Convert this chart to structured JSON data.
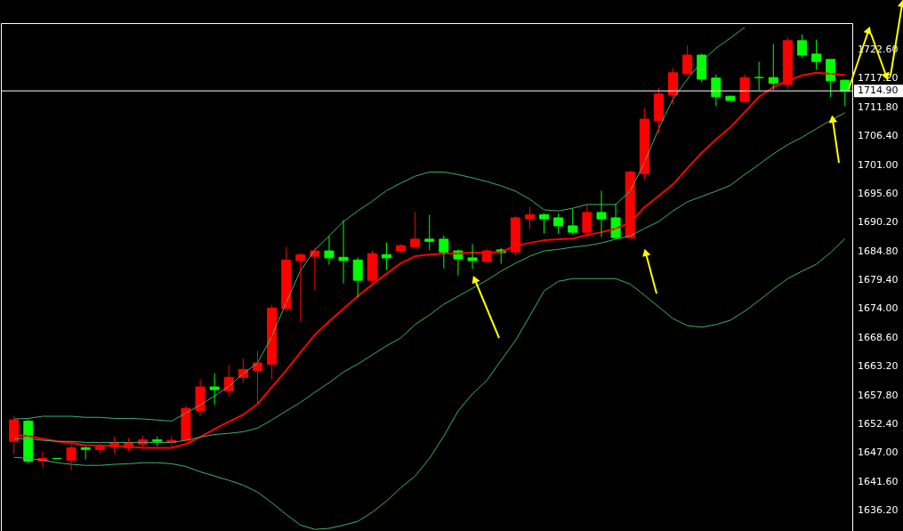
{
  "chart_data": {
    "type": "candlestick",
    "categories": [
      null,
      null,
      null,
      null,
      null,
      null,
      null,
      null,
      null,
      null,
      null,
      null,
      null,
      null,
      null,
      null,
      null,
      null,
      null,
      null,
      null,
      null,
      null,
      null,
      null,
      null,
      null,
      null,
      null,
      null,
      null,
      null,
      null,
      null,
      null,
      null,
      null,
      null,
      null,
      null,
      null,
      null,
      null,
      null,
      null,
      null,
      null,
      null,
      null,
      null,
      null,
      null,
      null,
      null,
      null,
      null,
      null,
      null,
      null
    ],
    "ohlc": [
      [
        1649.2,
        1653.9,
        1646.9,
        1653.2
      ],
      [
        1653.0,
        1653.2,
        1645.2,
        1645.5
      ],
      [
        1645.5,
        1647.2,
        1644.5,
        1646.0
      ],
      [
        1646.0,
        1646.0,
        1646.0,
        1646.0
      ],
      [
        1645.7,
        1649.0,
        1643.9,
        1648.0
      ],
      [
        1648.0,
        1648.2,
        1645.9,
        1647.7
      ],
      [
        1647.7,
        1649.0,
        1647.0,
        1648.2
      ],
      [
        1648.2,
        1650.0,
        1647.0,
        1648.9
      ],
      [
        1648.0,
        1649.7,
        1647.5,
        1648.9
      ],
      [
        1648.7,
        1650.2,
        1648.2,
        1649.5
      ],
      [
        1649.5,
        1650.0,
        1648.4,
        1649.2
      ],
      [
        1649.0,
        1650.2,
        1648.2,
        1649.4
      ],
      [
        1649.4,
        1655.7,
        1649.2,
        1655.4
      ],
      [
        1655.0,
        1660.7,
        1654.0,
        1659.4
      ],
      [
        1659.4,
        1661.9,
        1656.2,
        1658.9
      ],
      [
        1658.7,
        1663.4,
        1657.7,
        1661.2
      ],
      [
        1661.2,
        1664.6,
        1660.2,
        1662.7
      ],
      [
        1662.5,
        1666.1,
        1656.1,
        1663.9
      ],
      [
        1663.7,
        1674.7,
        1660.9,
        1674.2
      ],
      [
        1674.1,
        1685.6,
        1673.6,
        1683.2
      ],
      [
        1683.1,
        1684.4,
        1671.7,
        1684.2
      ],
      [
        1683.9,
        1685.4,
        1677.6,
        1684.9
      ],
      [
        1684.9,
        1687.6,
        1682.4,
        1683.6
      ],
      [
        1683.7,
        1690.6,
        1678.9,
        1683.1
      ],
      [
        1683.2,
        1683.6,
        1676.2,
        1679.4
      ],
      [
        1679.4,
        1684.9,
        1678.6,
        1684.4
      ],
      [
        1684.2,
        1686.4,
        1681.4,
        1683.6
      ],
      [
        1684.9,
        1686.1,
        1684.6,
        1685.9
      ],
      [
        1685.7,
        1692.1,
        1685.6,
        1687.1
      ],
      [
        1687.1,
        1691.6,
        1685.1,
        1686.7
      ],
      [
        1687.1,
        1687.7,
        1681.7,
        1684.7
      ],
      [
        1684.9,
        1685.1,
        1680.4,
        1683.4
      ],
      [
        1683.6,
        1686.1,
        1681.6,
        1683.1
      ],
      [
        1682.9,
        1685.2,
        1682.9,
        1684.9
      ],
      [
        1685.1,
        1685.4,
        1682.6,
        1684.6
      ],
      [
        1684.7,
        1691.4,
        1684.1,
        1691.1
      ],
      [
        1690.9,
        1693.1,
        1689.1,
        1691.7
      ],
      [
        1691.7,
        1691.9,
        1688.2,
        1690.9
      ],
      [
        1691.1,
        1691.9,
        1688.2,
        1689.6
      ],
      [
        1689.6,
        1692.7,
        1688.1,
        1688.4
      ],
      [
        1688.4,
        1693.6,
        1687.4,
        1692.1
      ],
      [
        1692.1,
        1696.1,
        1687.6,
        1690.9
      ],
      [
        1691.1,
        1693.6,
        1687.2,
        1687.4
      ],
      [
        1687.4,
        1699.9,
        1687.2,
        1699.7
      ],
      [
        1699.4,
        1711.6,
        1698.4,
        1709.6
      ],
      [
        1709.3,
        1715.4,
        1706.9,
        1714.3
      ],
      [
        1714.1,
        1719.1,
        1712.4,
        1718.3
      ],
      [
        1718.1,
        1723.3,
        1718.1,
        1721.6
      ],
      [
        1721.6,
        1721.8,
        1716.6,
        1717.1
      ],
      [
        1717.3,
        1717.9,
        1712.1,
        1713.8
      ],
      [
        1713.9,
        1713.9,
        1713.1,
        1713.1
      ],
      [
        1712.9,
        1717.9,
        1712.8,
        1717.4
      ],
      [
        1717.4,
        1720.3,
        1715.1,
        1717.4
      ],
      [
        1717.4,
        1723.6,
        1715.1,
        1716.3
      ],
      [
        1716.1,
        1724.9,
        1715.3,
        1724.3
      ],
      [
        1724.3,
        1725.4,
        1721.1,
        1721.6
      ],
      [
        1721.8,
        1724.4,
        1718.9,
        1720.4
      ],
      [
        1720.8,
        1720.8,
        1713.8,
        1716.8
      ],
      [
        1716.9,
        1716.9,
        1712.1,
        1714.9
      ]
    ],
    "colors": [
      "#ff0000",
      "#00ff00",
      "#ff0000",
      "#00ff00",
      "#ff0000",
      "#00ff00",
      "#ff0000",
      "#ff0000",
      "#ff0000",
      "#ff0000",
      "#00ff00",
      "#ff0000",
      "#ff0000",
      "#ff0000",
      "#00ff00",
      "#ff0000",
      "#ff0000",
      "#ff0000",
      "#ff0000",
      "#ff0000",
      "#ff0000",
      "#ff0000",
      "#00ff00",
      "#00ff00",
      "#00ff00",
      "#ff0000",
      "#00ff00",
      "#ff0000",
      "#ff0000",
      "#00ff00",
      "#00ff00",
      "#00ff00",
      "#00ff00",
      "#ff0000",
      "#00ff00",
      "#ff0000",
      "#ff0000",
      "#00ff00",
      "#00ff00",
      "#00ff00",
      "#ff0000",
      "#00ff00",
      "#00ff00",
      "#ff0000",
      "#ff0000",
      "#ff0000",
      "#ff0000",
      "#ff0000",
      "#00ff00",
      "#00ff00",
      "#00ff00",
      "#ff0000",
      "#00ff00",
      "#00ff00",
      "#ff0000",
      "#00ff00",
      "#00ff00",
      "#00ff00",
      "#00ff00"
    ],
    "series": [
      {
        "type": "line",
        "color": "#ff0000",
        "values": [
          1650.4,
          1650.2,
          1649.7,
          1649.2,
          1648.9,
          1648.5,
          1648.4,
          1648.4,
          1648.2,
          1648.0,
          1648.0,
          1648.0,
          1648.7,
          1650.0,
          1651.5,
          1652.9,
          1654.2,
          1656.2,
          1659.4,
          1662.5,
          1665.9,
          1669.2,
          1671.7,
          1674.1,
          1676.4,
          1678.6,
          1680.6,
          1682.6,
          1683.9,
          1684.2,
          1684.4,
          1684.4,
          1684.6,
          1684.6,
          1684.7,
          1685.9,
          1686.4,
          1686.9,
          1687.1,
          1687.2,
          1687.9,
          1688.4,
          1689.1,
          1690.2,
          1693.1,
          1695.2,
          1697.4,
          1700.4,
          1703.3,
          1705.8,
          1708.1,
          1710.9,
          1713.8,
          1715.6,
          1716.8,
          1717.8,
          1718.3,
          1718.1,
          1717.9
        ]
      },
      {
        "type": "line",
        "color": "#3cb371",
        "values": [
          1653.4,
          1653.5,
          1653.9,
          1653.9,
          1653.9,
          1653.7,
          1653.7,
          1653.5,
          1653.5,
          1653.4,
          1653.2,
          1653.0,
          1654.5,
          1656.0,
          1657.7,
          1659.5,
          1661.9,
          1663.9,
          1668.9,
          1675.2,
          1681.2,
          1685.1,
          1687.7,
          1690.4,
          1692.4,
          1694.2,
          1696.2,
          1697.6,
          1698.9,
          1699.7,
          1699.7,
          1699.2,
          1698.6,
          1697.9,
          1697.1,
          1696.1,
          1694.6,
          1692.6,
          1692.4,
          1692.9,
          1693.6,
          1693.6,
          1693.6,
          1696.1,
          1701.4,
          1707.8,
          1713.4,
          1717.1,
          1720.4,
          1722.9,
          1724.8,
          1726.8,
          null,
          null,
          null,
          null,
          null,
          null,
          null
        ]
      },
      {
        "type": "line",
        "color": "#3cb371",
        "values": [
          1649.7,
          1649.7,
          1649.4,
          1649.2,
          1649.2,
          1649.0,
          1649.0,
          1649.0,
          1649.0,
          1649.0,
          1649.0,
          1649.0,
          1649.4,
          1650.0,
          1650.5,
          1650.7,
          1651.0,
          1651.7,
          1653.2,
          1654.9,
          1656.5,
          1658.4,
          1660.2,
          1662.2,
          1663.7,
          1665.4,
          1667.1,
          1668.6,
          1671.1,
          1672.9,
          1674.9,
          1676.4,
          1677.9,
          1679.4,
          1681.1,
          1682.6,
          1683.9,
          1684.9,
          1685.2,
          1685.6,
          1685.9,
          1686.4,
          1687.1,
          1687.7,
          1689.1,
          1690.4,
          1692.4,
          1694.1,
          1695.1,
          1696.1,
          1697.2,
          1699.2,
          1701.1,
          1703.1,
          1704.8,
          1706.2,
          1707.8,
          1709.4,
          1710.8
        ]
      },
      {
        "type": "line",
        "color": "#3cb371",
        "values": [
          1646.2,
          1646.0,
          1645.7,
          1645.2,
          1644.9,
          1644.7,
          1644.7,
          1644.9,
          1645.0,
          1645.2,
          1645.2,
          1645.0,
          1644.5,
          1643.5,
          1642.7,
          1641.9,
          1641.0,
          1639.7,
          1637.7,
          1635.5,
          1633.5,
          1632.7,
          1632.9,
          1633.5,
          1634.2,
          1635.9,
          1638.0,
          1640.5,
          1642.7,
          1646.0,
          1650.2,
          1654.9,
          1658.1,
          1660.6,
          1664.4,
          1668.1,
          1672.7,
          1677.4,
          1679.2,
          1679.7,
          1679.7,
          1679.7,
          1679.7,
          1678.7,
          1676.6,
          1674.4,
          1672.2,
          1670.9,
          1670.6,
          1671.1,
          1671.9,
          1673.6,
          1675.6,
          1677.7,
          1679.7,
          1681.1,
          1682.4,
          1684.6,
          1687.2
        ]
      }
    ],
    "ylim": [
      1632.4,
      1727.6
    ],
    "yticks": [
      {
        "value": 1722.6,
        "label": "1722.60"
      },
      {
        "value": 1717.2,
        "label": "1717.20"
      },
      {
        "value": 1711.8,
        "label": "1711.80"
      },
      {
        "value": 1706.4,
        "label": "1706.40"
      },
      {
        "value": 1701.0,
        "label": "1701.00"
      },
      {
        "value": 1695.6,
        "label": "1695.60"
      },
      {
        "value": 1690.2,
        "label": "1690.20"
      },
      {
        "value": 1684.8,
        "label": "1684.80"
      },
      {
        "value": 1679.4,
        "label": "1679.40"
      },
      {
        "value": 1674.0,
        "label": "1674.00"
      },
      {
        "value": 1668.6,
        "label": "1668.60"
      },
      {
        "value": 1663.2,
        "label": "1663.20"
      },
      {
        "value": 1657.8,
        "label": "1657.80"
      },
      {
        "value": 1652.4,
        "label": "1652.40"
      },
      {
        "value": 1647.0,
        "label": "1647.00"
      },
      {
        "value": 1641.6,
        "label": "1641.60"
      },
      {
        "value": 1636.2,
        "label": "1636.20"
      }
    ],
    "ref_lines": [
      {
        "axis": "y",
        "value": 1714.9,
        "label": "1714.90",
        "color": "#ffffff"
      }
    ],
    "tick_labels": "y"
  }
}
